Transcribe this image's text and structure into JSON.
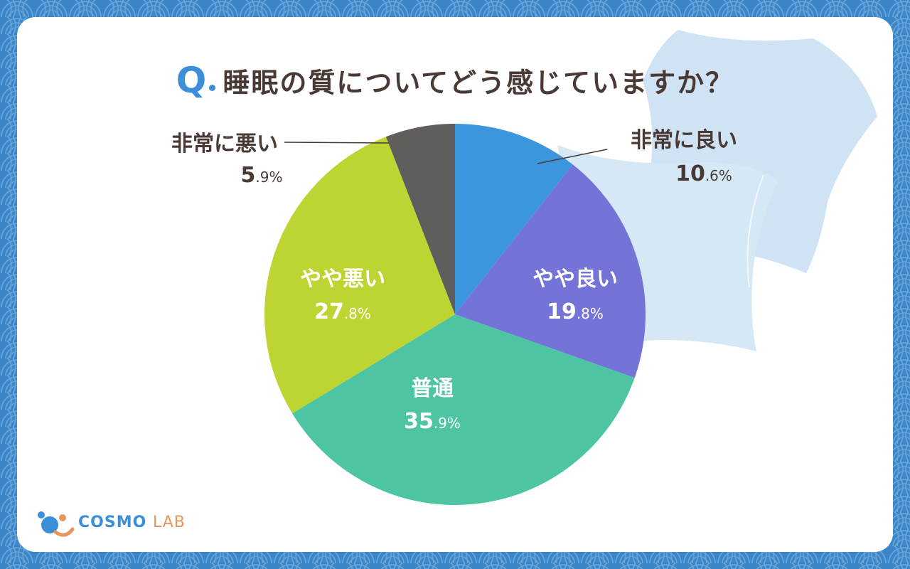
{
  "title": {
    "q_mark": "Q",
    "question": "睡眠の質についてどう感じていますか？"
  },
  "colors": {
    "background": "#3a86c8",
    "title_q": "#3b8fd8",
    "text_dark": "#4a3a36"
  },
  "chart_data": {
    "type": "pie",
    "title": "睡眠の質についてどう感じていますか？",
    "unit": "%",
    "slices": [
      {
        "label": "非常に良い",
        "value": 10.6,
        "int_part": "10",
        "dec_part": ".6%",
        "color": "#3b96de",
        "label_inside": false
      },
      {
        "label": "やや良い",
        "value": 19.8,
        "int_part": "19",
        "dec_part": ".8%",
        "color": "#7373d8",
        "label_inside": true
      },
      {
        "label": "普通",
        "value": 35.9,
        "int_part": "35",
        "dec_part": ".9%",
        "color": "#4ec5a2",
        "label_inside": true
      },
      {
        "label": "やや悪い",
        "value": 27.8,
        "int_part": "27",
        "dec_part": ".8%",
        "color": "#bdd432",
        "label_inside": true
      },
      {
        "label": "非常に悪い",
        "value": 5.9,
        "int_part": "5",
        "dec_part": ".9%",
        "color": "#625d5d",
        "label_inside": false
      }
    ]
  },
  "logo": {
    "main": "COSMO",
    "sub": "LAB"
  }
}
